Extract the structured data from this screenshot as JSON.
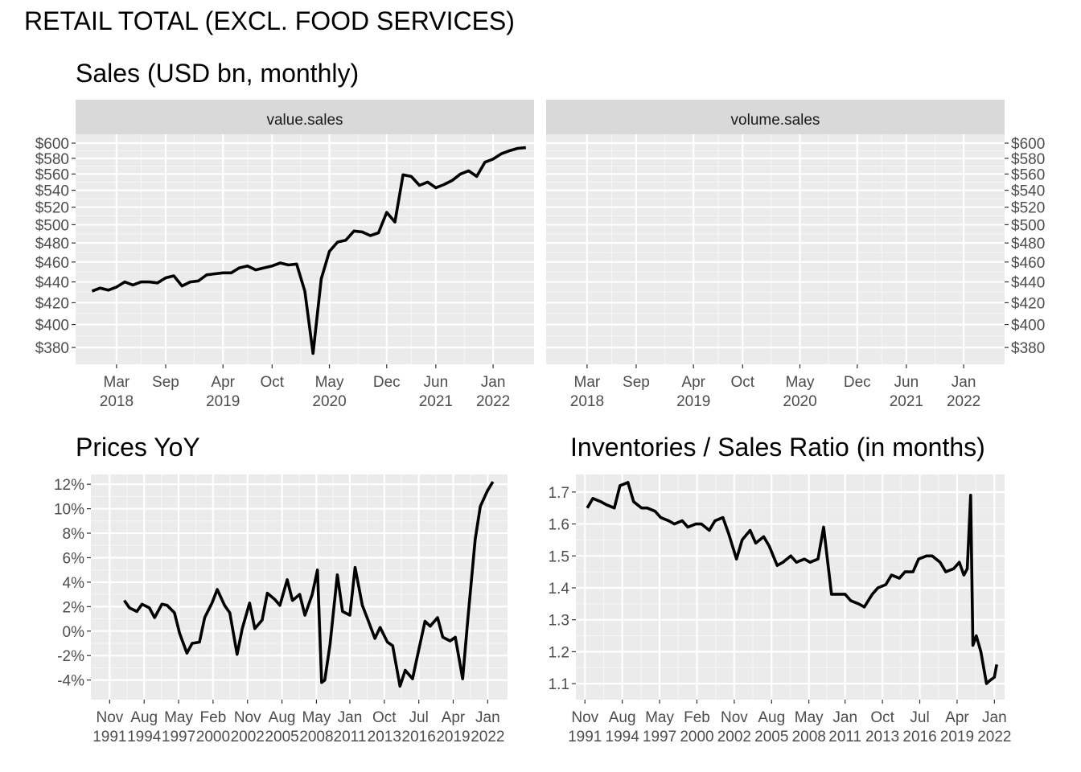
{
  "page": {
    "title": "RETAIL TOTAL (EXCL. FOOD SERVICES)"
  },
  "chart_data": [
    {
      "id": "sales",
      "type": "line",
      "title": "Sales (USD bn, monthly)",
      "facets": [
        "value.sales",
        "volume.sales"
      ],
      "x_ticks": [
        {
          "date": "2018-03",
          "label": [
            "Mar",
            "2018"
          ]
        },
        {
          "date": "2018-09",
          "label": [
            "Sep",
            ""
          ]
        },
        {
          "date": "2019-04",
          "label": [
            "Apr",
            "2019"
          ]
        },
        {
          "date": "2019-10",
          "label": [
            "Oct",
            ""
          ]
        },
        {
          "date": "2020-05",
          "label": [
            "May",
            "2020"
          ]
        },
        {
          "date": "2020-12",
          "label": [
            "Dec",
            ""
          ]
        },
        {
          "date": "2021-06",
          "label": [
            "Jun",
            "2021"
          ]
        },
        {
          "date": "2022-01",
          "label": [
            "Jan",
            "2022"
          ]
        }
      ],
      "xlim": [
        "2017-10",
        "2022-06"
      ],
      "y_ticks": [
        380,
        400,
        420,
        440,
        460,
        480,
        500,
        520,
        540,
        560,
        580,
        600
      ],
      "y_tick_labels": [
        "$380",
        "$400",
        "$420",
        "$440",
        "$460",
        "$480",
        "$500",
        "$520",
        "$540",
        "$560",
        "$580",
        "$600"
      ],
      "y_scale": "log",
      "ylim": [
        366,
        612
      ],
      "series": [
        {
          "facet": "value.sales",
          "x": [
            "2017-12",
            "2018-01",
            "2018-02",
            "2018-03",
            "2018-04",
            "2018-05",
            "2018-06",
            "2018-07",
            "2018-08",
            "2018-09",
            "2018-10",
            "2018-11",
            "2018-12",
            "2019-01",
            "2019-02",
            "2019-03",
            "2019-04",
            "2019-05",
            "2019-06",
            "2019-07",
            "2019-08",
            "2019-09",
            "2019-10",
            "2019-11",
            "2019-12",
            "2020-01",
            "2020-02",
            "2020-03",
            "2020-04",
            "2020-05",
            "2020-06",
            "2020-07",
            "2020-08",
            "2020-09",
            "2020-10",
            "2020-11",
            "2020-12",
            "2021-01",
            "2021-02",
            "2021-03",
            "2021-04",
            "2021-05",
            "2021-06",
            "2021-07",
            "2021-08",
            "2021-09",
            "2021-10",
            "2021-11",
            "2021-12",
            "2022-01",
            "2022-02",
            "2022-03",
            "2022-04",
            "2022-05"
          ],
          "y": [
            431,
            434,
            432,
            435,
            440,
            437,
            440,
            440,
            439,
            444,
            446,
            436,
            440,
            441,
            447,
            448,
            449,
            449,
            454,
            456,
            452,
            454,
            456,
            459,
            457,
            458,
            431,
            375,
            443,
            471,
            481,
            483,
            493,
            492,
            488,
            491,
            514,
            503,
            559,
            557,
            546,
            550,
            543,
            547,
            552,
            560,
            564,
            557,
            575,
            579,
            586,
            590,
            593,
            594
          ]
        },
        {
          "facet": "volume.sales",
          "x": [],
          "y": []
        }
      ]
    },
    {
      "id": "prices",
      "type": "line",
      "title": "Prices YoY",
      "x_ticks": [
        {
          "date": "1991-11",
          "label": [
            "Nov",
            "1991"
          ]
        },
        {
          "date": "1994-08",
          "label": [
            "Aug",
            "1994"
          ]
        },
        {
          "date": "1997-05",
          "label": [
            "May",
            "1997"
          ]
        },
        {
          "date": "2000-02",
          "label": [
            "Feb",
            "2000"
          ]
        },
        {
          "date": "2002-11",
          "label": [
            "Nov",
            "2002"
          ]
        },
        {
          "date": "2005-08",
          "label": [
            "Aug",
            "2005"
          ]
        },
        {
          "date": "2008-05",
          "label": [
            "May",
            "2008"
          ]
        },
        {
          "date": "2011-01",
          "label": [
            "Jan",
            "2011"
          ]
        },
        {
          "date": "2013-10",
          "label": [
            "Oct",
            "2013"
          ]
        },
        {
          "date": "2016-07",
          "label": [
            "Jul",
            "2016"
          ]
        },
        {
          "date": "2019-04",
          "label": [
            "Apr",
            "2019"
          ]
        },
        {
          "date": "2022-01",
          "label": [
            "Jan",
            "2022"
          ]
        }
      ],
      "xlim": [
        "1990-05",
        "2023-08"
      ],
      "y_ticks": [
        -4,
        -2,
        0,
        2,
        4,
        6,
        8,
        10,
        12
      ],
      "y_tick_labels": [
        "-4%",
        "-2%",
        "0%",
        "2%",
        "4%",
        "6%",
        "8%",
        "10%",
        "12%"
      ],
      "ylim": [
        -5.6,
        12.8
      ],
      "series": [
        {
          "x": [
            "1993-01",
            "1993-06",
            "1994-01",
            "1994-06",
            "1995-01",
            "1995-06",
            "1996-01",
            "1996-06",
            "1997-01",
            "1997-06",
            "1998-01",
            "1998-06",
            "1999-01",
            "1999-06",
            "2000-01",
            "2000-06",
            "2001-01",
            "2001-06",
            "2002-01",
            "2002-06",
            "2003-01",
            "2003-06",
            "2004-01",
            "2004-06",
            "2005-01",
            "2005-06",
            "2006-01",
            "2006-06",
            "2007-01",
            "2007-06",
            "2008-01",
            "2008-06",
            "2008-10",
            "2009-01",
            "2009-06",
            "2010-01",
            "2010-06",
            "2011-01",
            "2011-06",
            "2012-01",
            "2012-06",
            "2013-01",
            "2013-06",
            "2014-01",
            "2014-06",
            "2015-01",
            "2015-06",
            "2016-01",
            "2016-06",
            "2017-01",
            "2017-06",
            "2018-01",
            "2018-06",
            "2019-01",
            "2019-06",
            "2020-01",
            "2020-06",
            "2021-01",
            "2021-06",
            "2022-01",
            "2022-06"
          ],
          "y": [
            2.5,
            1.9,
            1.6,
            2.2,
            1.9,
            1.1,
            2.2,
            2.1,
            1.5,
            -0.2,
            -1.8,
            -1.0,
            -0.9,
            1.1,
            2.3,
            3.4,
            2.1,
            1.5,
            -1.9,
            0.2,
            2.3,
            0.2,
            0.9,
            3.1,
            2.6,
            2.1,
            4.2,
            2.5,
            3.0,
            1.3,
            3.0,
            5.0,
            -4.2,
            -4.0,
            -1.1,
            4.6,
            1.6,
            1.3,
            5.2,
            2.1,
            1.0,
            -0.6,
            0.3,
            -0.9,
            -1.2,
            -4.5,
            -3.2,
            -3.9,
            -1.9,
            0.8,
            0.4,
            1.1,
            -0.5,
            -0.8,
            -0.5,
            -3.9,
            1.0,
            7.5,
            10.2,
            11.5,
            12.2
          ]
        }
      ]
    },
    {
      "id": "inventories",
      "type": "line",
      "title": "Inventories / Sales Ratio (in months)",
      "x_ticks": [
        {
          "date": "1991-11",
          "label": [
            "Nov",
            "1991"
          ]
        },
        {
          "date": "1994-08",
          "label": [
            "Aug",
            "1994"
          ]
        },
        {
          "date": "1997-05",
          "label": [
            "May",
            "1997"
          ]
        },
        {
          "date": "2000-02",
          "label": [
            "Feb",
            "2000"
          ]
        },
        {
          "date": "2002-11",
          "label": [
            "Nov",
            "2002"
          ]
        },
        {
          "date": "2005-08",
          "label": [
            "Aug",
            "2005"
          ]
        },
        {
          "date": "2008-05",
          "label": [
            "May",
            "2008"
          ]
        },
        {
          "date": "2011-01",
          "label": [
            "Jan",
            "2011"
          ]
        },
        {
          "date": "2013-10",
          "label": [
            "Oct",
            "2013"
          ]
        },
        {
          "date": "2016-07",
          "label": [
            "Jul",
            "2016"
          ]
        },
        {
          "date": "2019-04",
          "label": [
            "Apr",
            "2019"
          ]
        },
        {
          "date": "2022-01",
          "label": [
            "Jan",
            "2022"
          ]
        }
      ],
      "xlim": [
        "1991-03",
        "2022-10"
      ],
      "y_ticks": [
        1.1,
        1.2,
        1.3,
        1.4,
        1.5,
        1.6,
        1.7
      ],
      "y_tick_labels": [
        "1.1",
        "1.2",
        "1.3",
        "1.4",
        "1.5",
        "1.6",
        "1.7"
      ],
      "ylim": [
        1.05,
        1.755
      ],
      "series": [
        {
          "x": [
            "1992-01",
            "1992-06",
            "1993-01",
            "1993-06",
            "1994-01",
            "1994-06",
            "1995-01",
            "1995-06",
            "1996-01",
            "1996-06",
            "1997-01",
            "1997-06",
            "1998-01",
            "1998-06",
            "1999-01",
            "1999-06",
            "2000-01",
            "2000-06",
            "2001-01",
            "2001-06",
            "2002-01",
            "2002-06",
            "2003-01",
            "2003-06",
            "2004-01",
            "2004-06",
            "2005-01",
            "2005-06",
            "2006-01",
            "2006-06",
            "2007-01",
            "2007-06",
            "2008-01",
            "2008-06",
            "2009-01",
            "2009-06",
            "2010-01",
            "2010-06",
            "2011-01",
            "2011-06",
            "2012-01",
            "2012-06",
            "2013-01",
            "2013-06",
            "2014-01",
            "2014-06",
            "2015-01",
            "2015-06",
            "2016-01",
            "2016-06",
            "2017-01",
            "2017-06",
            "2018-01",
            "2018-06",
            "2019-01",
            "2019-06",
            "2019-10",
            "2020-01",
            "2020-04",
            "2020-06",
            "2020-09",
            "2021-01",
            "2021-06",
            "2021-09",
            "2022-01",
            "2022-03"
          ],
          "y": [
            1.65,
            1.68,
            1.67,
            1.66,
            1.65,
            1.72,
            1.73,
            1.67,
            1.65,
            1.65,
            1.64,
            1.62,
            1.61,
            1.6,
            1.61,
            1.59,
            1.6,
            1.6,
            1.58,
            1.61,
            1.62,
            1.57,
            1.49,
            1.55,
            1.58,
            1.54,
            1.56,
            1.53,
            1.47,
            1.48,
            1.5,
            1.48,
            1.49,
            1.48,
            1.49,
            1.59,
            1.38,
            1.38,
            1.38,
            1.36,
            1.35,
            1.34,
            1.38,
            1.4,
            1.41,
            1.44,
            1.43,
            1.45,
            1.45,
            1.49,
            1.5,
            1.5,
            1.48,
            1.45,
            1.46,
            1.48,
            1.44,
            1.46,
            1.69,
            1.22,
            1.25,
            1.2,
            1.1,
            1.11,
            1.12,
            1.16
          ]
        }
      ]
    }
  ]
}
